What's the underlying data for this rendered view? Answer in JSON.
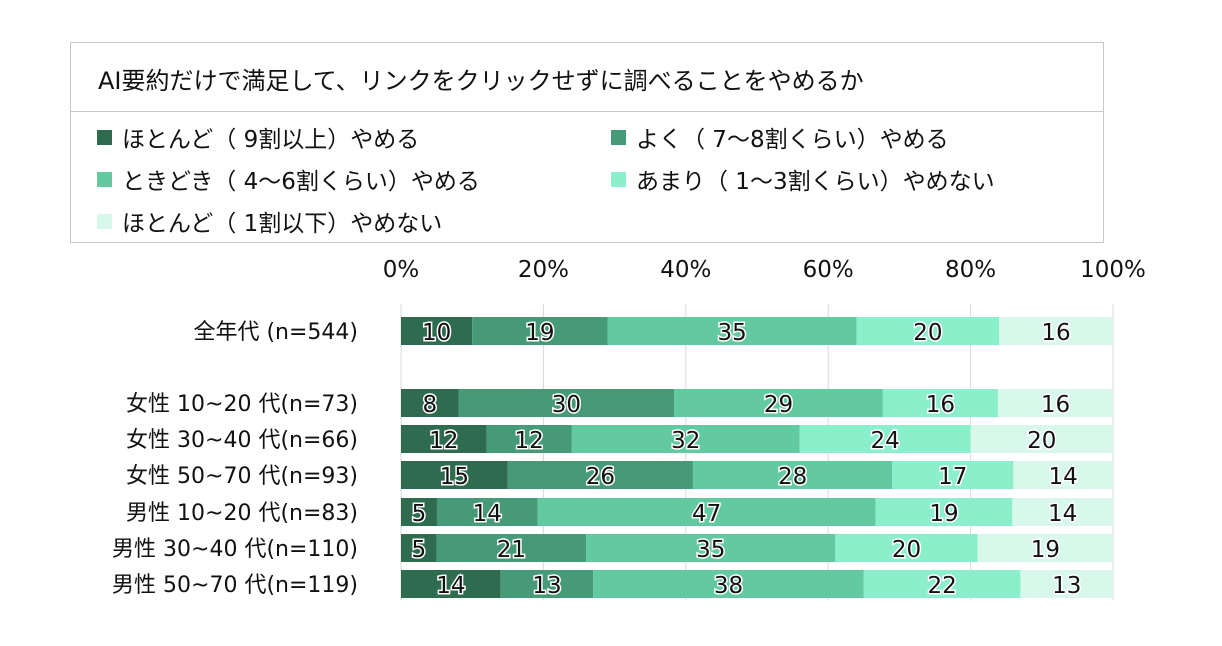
{
  "chart_data": {
    "type": "bar",
    "orientation": "horizontal",
    "stacked": "percent",
    "title": "AI要約だけで満足して、リンクをクリックせずに調べることをやめるか",
    "x_ticks": [
      "0%",
      "20%",
      "40%",
      "60%",
      "80%",
      "100%"
    ],
    "xlim": [
      0,
      100
    ],
    "grid": true,
    "categories": [
      "全年代 (n=544)",
      "女性 10~20 代(n=73)",
      "女性 30~40 代(n=66)",
      "女性 50~70 代(n=93)",
      "男性 10~20 代(n=83)",
      "男性 30~40 代(n=110)",
      "男性 50~70 代(n=119)"
    ],
    "series": [
      {
        "name": "ほとんど（ 9割以上）やめる",
        "color": "#2e6b4f",
        "values": [
          10,
          8,
          12,
          15,
          5,
          5,
          14
        ]
      },
      {
        "name": "よく（ 7～8割くらい）やめる",
        "color": "#469a77",
        "values": [
          19,
          30,
          12,
          26,
          14,
          21,
          13
        ]
      },
      {
        "name": "ときどき（ 4～6割くらい）やめる",
        "color": "#63c9a0",
        "values": [
          35,
          29,
          32,
          28,
          47,
          35,
          38
        ]
      },
      {
        "name": "あまり（ 1～3割くらい）やめない",
        "color": "#8cefcc",
        "values": [
          20,
          16,
          24,
          17,
          19,
          20,
          22
        ]
      },
      {
        "name": "ほとんど（ 1割以下）やめない",
        "color": "#d8f8ec",
        "values": [
          16,
          16,
          20,
          14,
          14,
          19,
          13
        ]
      }
    ]
  }
}
